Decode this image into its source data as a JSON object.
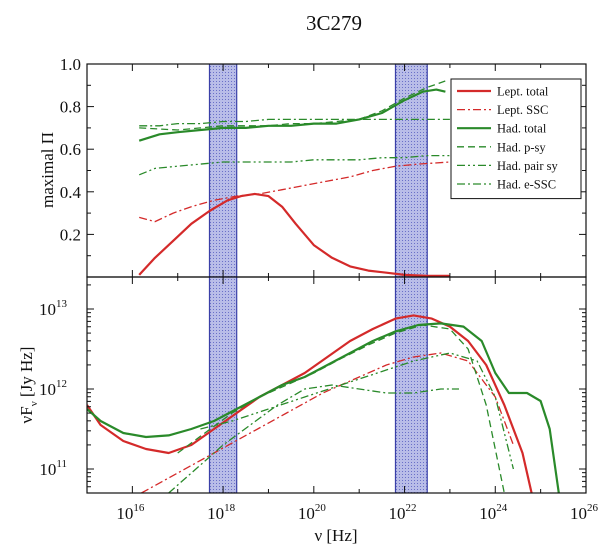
{
  "chart_data": [
    {
      "type": "line",
      "title": "3C279",
      "ylabel": "maximal Π",
      "xscale": "log",
      "xlim_log10": [
        15,
        26
      ],
      "ylim": [
        0,
        1
      ],
      "yticks": [
        {
          "v": 0.2,
          "label": "0.2"
        },
        {
          "v": 0.4,
          "label": "0.4"
        },
        {
          "v": 0.6,
          "label": "0.6"
        },
        {
          "v": 0.8,
          "label": "0.8"
        },
        {
          "v": 1.0,
          "label": "1.0"
        }
      ],
      "legend_position": "top-right",
      "shaded_bands_log10": [
        [
          17.7,
          18.3
        ],
        [
          21.8,
          22.5
        ]
      ],
      "series": [
        {
          "name": "Lept. total",
          "color": "#d42a2a",
          "dash": "solid",
          "x": [
            16.15,
            16.5,
            16.9,
            17.3,
            17.7,
            18.1,
            18.4,
            18.7,
            19.0,
            19.3,
            19.6,
            20.0,
            20.4,
            20.8,
            21.2,
            21.6,
            22.0,
            22.5,
            23.0
          ],
          "y": [
            0.01,
            0.09,
            0.17,
            0.25,
            0.31,
            0.36,
            0.38,
            0.39,
            0.38,
            0.33,
            0.25,
            0.15,
            0.09,
            0.05,
            0.03,
            0.02,
            0.01,
            0.005,
            0.005
          ]
        },
        {
          "name": "Lept. SSC",
          "color": "#d42a2a",
          "dash": "dashdot",
          "x": [
            16.15,
            16.5,
            16.9,
            17.3,
            17.8,
            18.3,
            18.8,
            19.3,
            19.8,
            20.3,
            20.8,
            21.3,
            21.8,
            22.3,
            23.0
          ],
          "y": [
            0.28,
            0.26,
            0.3,
            0.33,
            0.36,
            0.38,
            0.39,
            0.41,
            0.43,
            0.45,
            0.47,
            0.5,
            0.52,
            0.53,
            0.54
          ]
        },
        {
          "name": "Had. total",
          "color": "#2a8a2a",
          "dash": "solid",
          "x": [
            16.15,
            16.6,
            17.0,
            17.5,
            18.0,
            18.5,
            19.0,
            19.5,
            20.0,
            20.5,
            21.0,
            21.5,
            22.0,
            22.4,
            22.7,
            22.9
          ],
          "y": [
            0.64,
            0.67,
            0.68,
            0.69,
            0.7,
            0.7,
            0.71,
            0.71,
            0.72,
            0.72,
            0.74,
            0.77,
            0.83,
            0.87,
            0.88,
            0.87
          ]
        },
        {
          "name": "Had. p-sy",
          "color": "#2a8a2a",
          "dash": "dashed",
          "x": [
            16.15,
            17.0,
            17.5,
            18.0,
            18.5,
            19.0,
            19.5,
            20.0,
            20.5,
            21.0,
            21.5,
            22.0,
            22.5,
            22.9
          ],
          "y": [
            0.7,
            0.69,
            0.7,
            0.71,
            0.71,
            0.71,
            0.72,
            0.72,
            0.73,
            0.74,
            0.78,
            0.84,
            0.89,
            0.92
          ]
        },
        {
          "name": "Had. pair sy",
          "color": "#2a8a2a",
          "dash": "dashdotdot",
          "x": [
            16.15,
            16.5,
            17.0,
            17.5,
            18.0,
            18.5,
            19.0,
            19.5,
            20.0,
            20.5,
            21.0,
            21.5,
            22.0,
            22.5,
            23.0
          ],
          "y": [
            0.48,
            0.51,
            0.52,
            0.53,
            0.54,
            0.54,
            0.54,
            0.54,
            0.55,
            0.55,
            0.55,
            0.56,
            0.56,
            0.57,
            0.57
          ]
        },
        {
          "name": "Had. e-SSC",
          "color": "#2a8a2a",
          "dash": "dashdot",
          "x": [
            16.15,
            16.6,
            17.0,
            17.5,
            18.0,
            18.5,
            19.0,
            19.5,
            20.0,
            20.5,
            21.0,
            21.5,
            22.0,
            22.5,
            23.0
          ],
          "y": [
            0.71,
            0.71,
            0.72,
            0.72,
            0.73,
            0.73,
            0.74,
            0.74,
            0.74,
            0.74,
            0.74,
            0.74,
            0.74,
            0.74,
            0.74
          ]
        }
      ]
    },
    {
      "type": "line",
      "xlabel": "ν [Hz]",
      "ylabel_main": "νF",
      "ylabel_sub": "ν",
      "ylabel_rest": " [Jy Hz]",
      "xscale": "log",
      "yscale": "log",
      "xlim_log10": [
        15,
        26
      ],
      "ylim_log10": [
        10.7,
        13.4
      ],
      "xticks": [
        {
          "base": "10",
          "exp": "16",
          "v": 16
        },
        {
          "base": "10",
          "exp": "18",
          "v": 18
        },
        {
          "base": "10",
          "exp": "20",
          "v": 20
        },
        {
          "base": "10",
          "exp": "22",
          "v": 22
        },
        {
          "base": "10",
          "exp": "24",
          "v": 24
        },
        {
          "base": "10",
          "exp": "26",
          "v": 26
        }
      ],
      "yticks": [
        {
          "base": "10",
          "exp": "11",
          "v": 11
        },
        {
          "base": "10",
          "exp": "12",
          "v": 12
        },
        {
          "base": "10",
          "exp": "13",
          "v": 13
        }
      ],
      "shaded_bands_log10": [
        [
          17.7,
          18.3
        ],
        [
          21.8,
          22.5
        ]
      ],
      "series": [
        {
          "name": "Lept. total",
          "color": "#d42a2a",
          "dash": "solid",
          "x": [
            15.0,
            15.3,
            15.8,
            16.3,
            16.8,
            17.3,
            17.8,
            18.3,
            18.8,
            19.3,
            19.8,
            20.3,
            20.8,
            21.3,
            21.8,
            22.2,
            22.6,
            23.0,
            23.4,
            23.8,
            24.2,
            24.6,
            24.8
          ],
          "y": [
            11.8,
            11.55,
            11.35,
            11.25,
            11.2,
            11.3,
            11.5,
            11.7,
            11.9,
            12.05,
            12.2,
            12.4,
            12.6,
            12.75,
            12.88,
            12.92,
            12.88,
            12.78,
            12.6,
            12.3,
            11.8,
            11.2,
            10.7
          ]
        },
        {
          "name": "Lept. SSC",
          "color": "#d42a2a",
          "dash": "dashdot",
          "x": [
            16.2,
            17.0,
            17.8,
            18.6,
            19.4,
            20.2,
            21.0,
            21.6,
            22.2,
            22.8,
            23.4,
            24.0,
            24.4
          ],
          "y": [
            10.7,
            10.95,
            11.2,
            11.45,
            11.7,
            11.95,
            12.15,
            12.3,
            12.4,
            12.45,
            12.35,
            11.9,
            11.3
          ]
        },
        {
          "name": "Had. total",
          "color": "#2a8a2a",
          "dash": "solid",
          "x": [
            15.0,
            15.3,
            15.8,
            16.3,
            16.8,
            17.3,
            17.8,
            18.3,
            18.8,
            19.3,
            19.8,
            20.3,
            20.8,
            21.3,
            21.8,
            22.3,
            22.8,
            23.3,
            23.7,
            24.0,
            24.3,
            24.7,
            25.0,
            25.2,
            25.4
          ],
          "y": [
            11.75,
            11.6,
            11.45,
            11.4,
            11.42,
            11.5,
            11.6,
            11.75,
            11.9,
            12.05,
            12.15,
            12.3,
            12.45,
            12.6,
            12.72,
            12.8,
            12.82,
            12.78,
            12.6,
            12.2,
            11.95,
            11.95,
            11.85,
            11.5,
            10.7
          ]
        },
        {
          "name": "Had. p-sy",
          "color": "#2a8a2a",
          "dash": "dashed",
          "x": [
            17.0,
            17.6,
            18.2,
            18.8,
            19.4,
            20.0,
            20.6,
            21.2,
            21.8,
            22.4,
            23.0,
            23.4,
            23.8,
            24.2
          ],
          "y": [
            11.2,
            11.45,
            11.7,
            11.9,
            12.05,
            12.2,
            12.38,
            12.55,
            12.7,
            12.8,
            12.75,
            12.5,
            11.8,
            10.7
          ]
        },
        {
          "name": "Had. pair sy",
          "color": "#2a8a2a",
          "dash": "dashdotdot",
          "x": [
            17.5,
            18.2,
            19.0,
            19.8,
            20.6,
            21.4,
            22.2,
            23.0,
            23.6,
            24.0,
            24.4
          ],
          "y": [
            11.5,
            11.6,
            11.75,
            11.9,
            12.05,
            12.2,
            12.35,
            12.45,
            12.35,
            11.9,
            11.0
          ]
        },
        {
          "name": "Had. e-SSC",
          "color": "#2a8a2a",
          "dash": "dashdot",
          "x": [
            16.8,
            17.4,
            18.0,
            18.6,
            19.2,
            19.8,
            20.4,
            21.0,
            21.6,
            22.2,
            22.8,
            23.2
          ],
          "y": [
            10.7,
            11.0,
            11.3,
            11.55,
            11.8,
            12.0,
            12.05,
            12.0,
            11.95,
            11.95,
            12.0,
            12.0
          ]
        }
      ]
    }
  ]
}
